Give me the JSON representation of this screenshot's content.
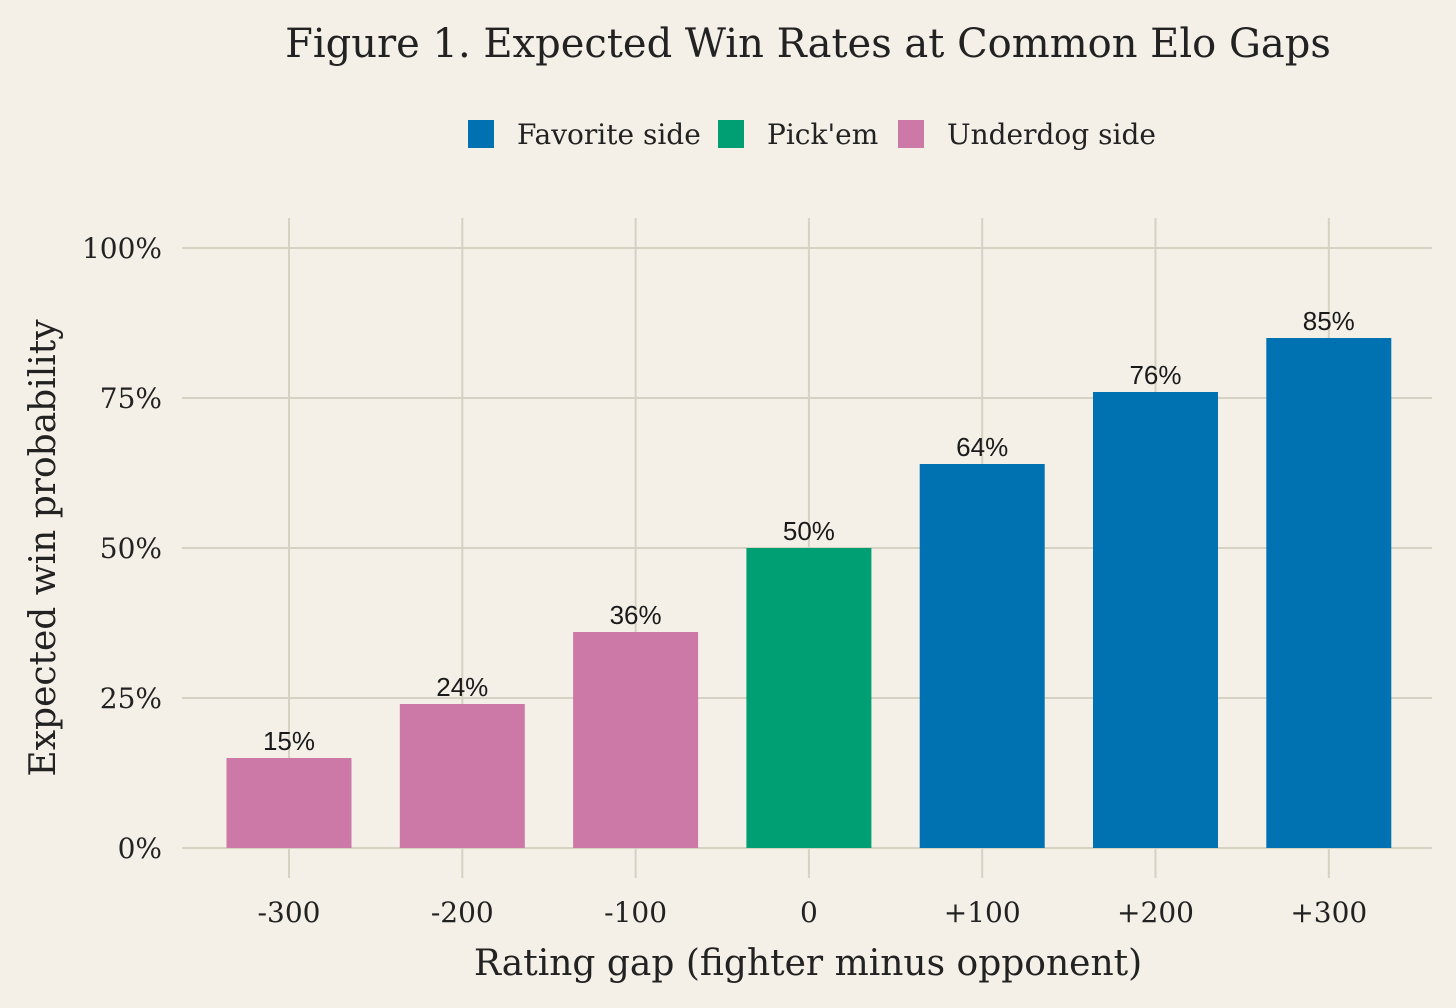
{
  "chart_data": {
    "type": "bar",
    "title": "Figure 1. Expected Win Rates at Common Elo Gaps",
    "xlabel": "Rating gap (fighter minus opponent)",
    "ylabel": "Expected win probability",
    "categories": [
      "-300",
      "-200",
      "-100",
      "0",
      "+100",
      "+200",
      "+300"
    ],
    "values": [
      15,
      24,
      36,
      50,
      64,
      76,
      85
    ],
    "value_labels": [
      "15%",
      "24%",
      "36%",
      "50%",
      "64%",
      "76%",
      "85%"
    ],
    "groups": [
      "underdog",
      "underdog",
      "underdog",
      "pickem",
      "favorite",
      "favorite",
      "favorite"
    ],
    "ylim": [
      0,
      100
    ],
    "yticks": [
      0,
      25,
      50,
      75,
      100
    ],
    "ytick_labels": [
      "0%",
      "25%",
      "50%",
      "75%",
      "100%"
    ],
    "grid": true,
    "legend_position": "top-center",
    "legend": [
      {
        "key": "favorite",
        "label": "Favorite side",
        "color": "#0072b2"
      },
      {
        "key": "pickem",
        "label": "Pick'em",
        "color": "#009e73"
      },
      {
        "key": "underdog",
        "label": "Underdog side",
        "color": "#cc79a7"
      }
    ]
  }
}
